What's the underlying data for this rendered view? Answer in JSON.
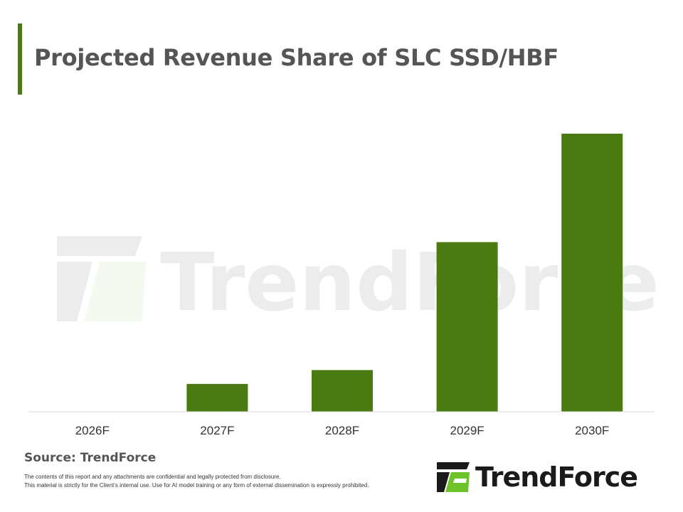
{
  "header": {
    "title": "Projected Revenue Share of SLC SSD/HBF"
  },
  "chart_data": {
    "type": "bar",
    "title": "Projected Revenue Share of SLC SSD/HBF",
    "categories": [
      "2026F",
      "2027F",
      "2028F",
      "2029F",
      "2030F"
    ],
    "values": [
      0,
      10,
      15,
      61,
      100
    ],
    "ylim": [
      0,
      100
    ],
    "xlabel": "",
    "ylabel": "",
    "grid": false,
    "legend": "none",
    "bar_color": "#4a7a12",
    "value_note": "relative bar heights (no y-axis printed), scaled so 2030F = 100"
  },
  "watermark": {
    "text": "TrendForce"
  },
  "footer": {
    "source": "Source: TrendForce",
    "disclaimer_line1": "The contents of this report and any attachments are confidential and legally protected from disclosure.",
    "disclaimer_line2": "This material is strictly for the Client’s internal use. Use for AI model training or any form of external dissemination is expressly prohibited.",
    "logo_text": "TrendForce"
  },
  "colors": {
    "accent": "#4a7a12",
    "logo_green": "#6fc32a",
    "title_gray": "#555555"
  }
}
